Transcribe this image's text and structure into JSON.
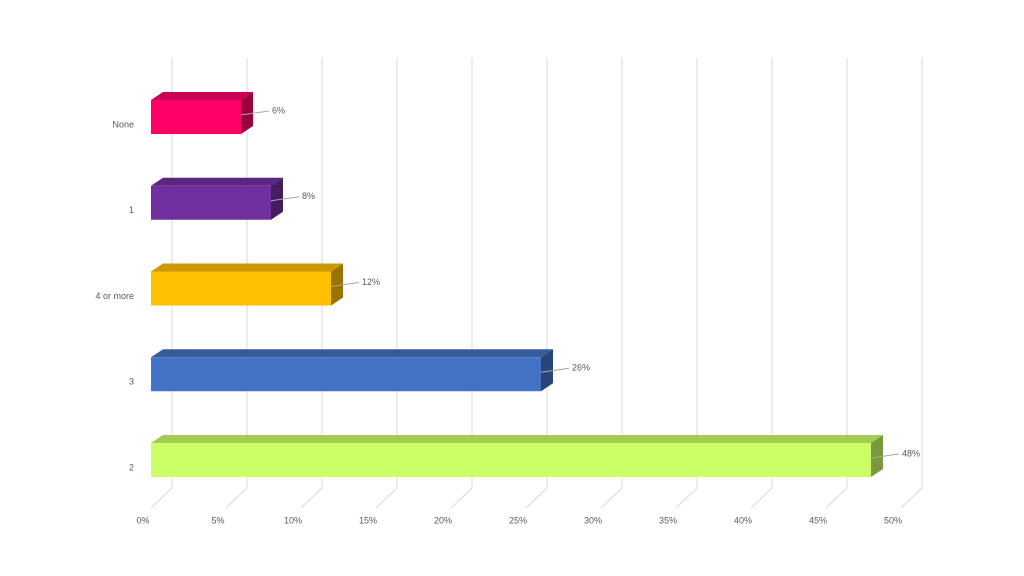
{
  "chart_data": {
    "type": "bar3d-horizontal",
    "categories": [
      "None",
      "1",
      "4 or more",
      "3",
      "2"
    ],
    "values": [
      6,
      8,
      12,
      26,
      48
    ],
    "value_labels": [
      "6%",
      "8%",
      "12%",
      "26%",
      "48%"
    ],
    "colors": [
      "#ff0066",
      "#7030a0",
      "#ffc000",
      "#4472c4",
      "#ccff66"
    ],
    "xlim": [
      0,
      50
    ],
    "xticks": [
      {
        "value": 0,
        "label": "0%"
      },
      {
        "value": 5,
        "label": "5%"
      },
      {
        "value": 10,
        "label": "10%"
      },
      {
        "value": 15,
        "label": "15%"
      },
      {
        "value": 20,
        "label": "20%"
      },
      {
        "value": 25,
        "label": "25%"
      },
      {
        "value": 30,
        "label": "30%"
      },
      {
        "value": 35,
        "label": "35%"
      },
      {
        "value": 40,
        "label": "40%"
      },
      {
        "value": 45,
        "label": "45%"
      },
      {
        "value": 50,
        "label": "50%"
      }
    ],
    "grid": true
  }
}
